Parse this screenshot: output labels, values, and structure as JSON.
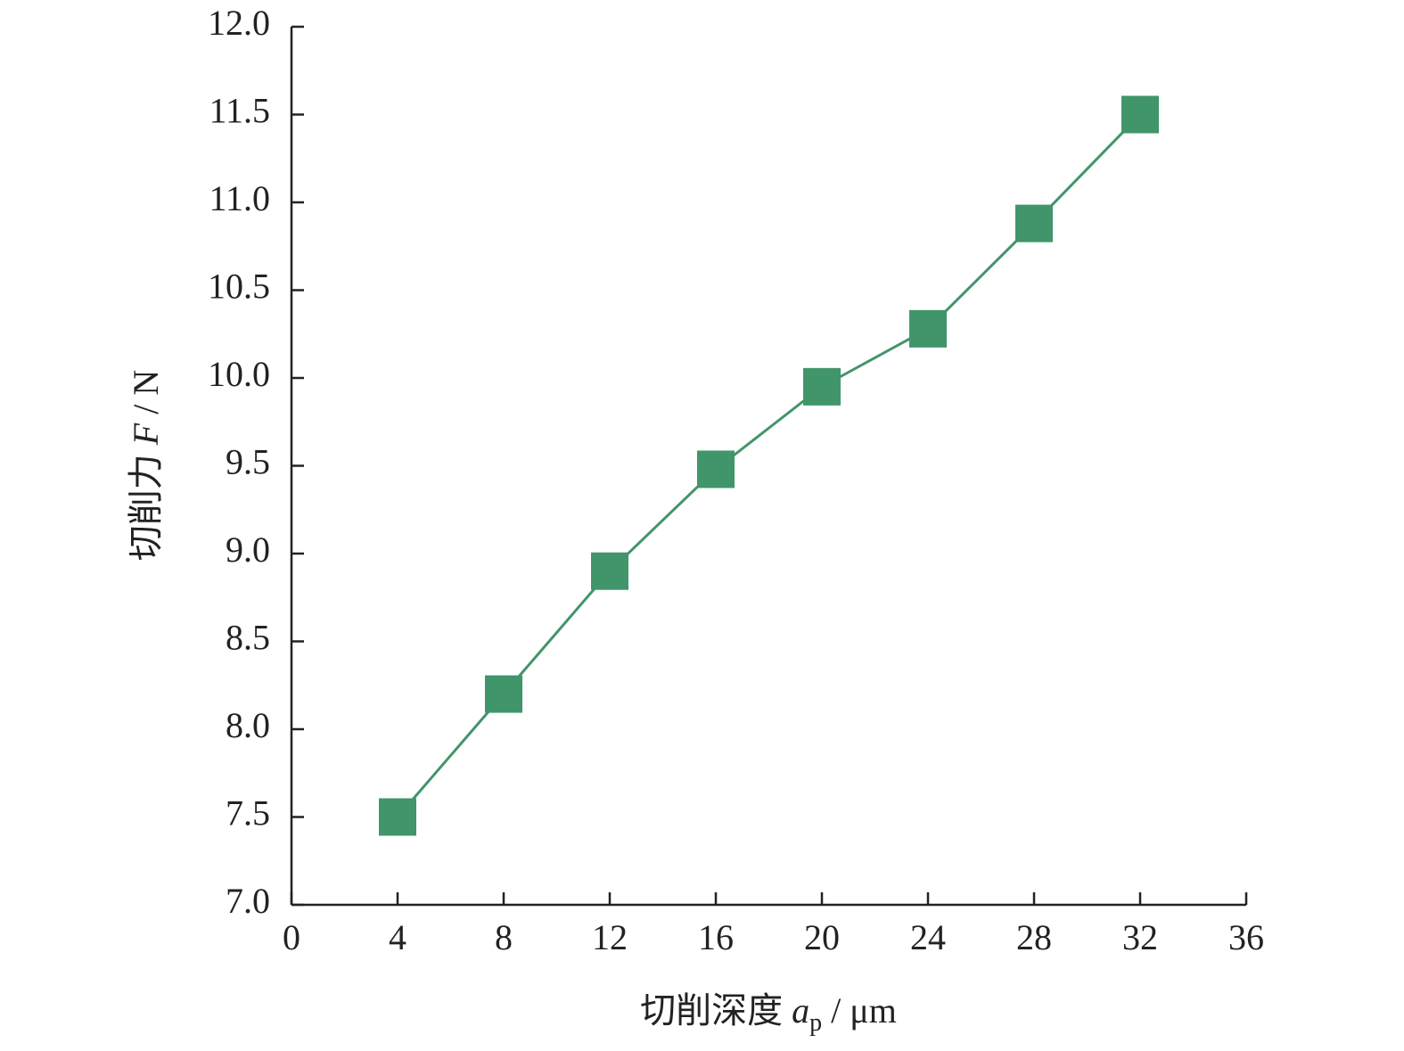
{
  "chart_data": {
    "type": "line",
    "x_label": [
      "切削深度 ",
      "a",
      "p",
      " / μm"
    ],
    "y_label": [
      "切削力 ",
      "F",
      " / N"
    ],
    "x": [
      4,
      8,
      12,
      16,
      20,
      24,
      28,
      32
    ],
    "series": [
      {
        "color": "#41956a",
        "values": [
          7.5,
          8.2,
          8.9,
          9.48,
          9.95,
          10.28,
          10.88,
          11.5
        ]
      }
    ],
    "xlim": [
      0,
      36
    ],
    "xticks": [
      0,
      4,
      8,
      12,
      16,
      20,
      24,
      28,
      32,
      36
    ],
    "ylim": [
      7.0,
      12.0
    ],
    "yticks": [
      {
        "value": 7.0,
        "label": "7.0"
      },
      {
        "value": 7.5,
        "label": "7.5"
      },
      {
        "value": 8.0,
        "label": "8.0"
      },
      {
        "value": 8.5,
        "label": "8.5"
      },
      {
        "value": 9.0,
        "label": "9.0"
      },
      {
        "value": 9.5,
        "label": "9.5"
      },
      {
        "value": 10.0,
        "label": "10.0"
      },
      {
        "value": 10.5,
        "label": "10.5"
      },
      {
        "value": 11.0,
        "label": "11.0"
      },
      {
        "value": 11.5,
        "label": "11.5"
      },
      {
        "value": 12.0,
        "label": "12.0"
      }
    ]
  }
}
